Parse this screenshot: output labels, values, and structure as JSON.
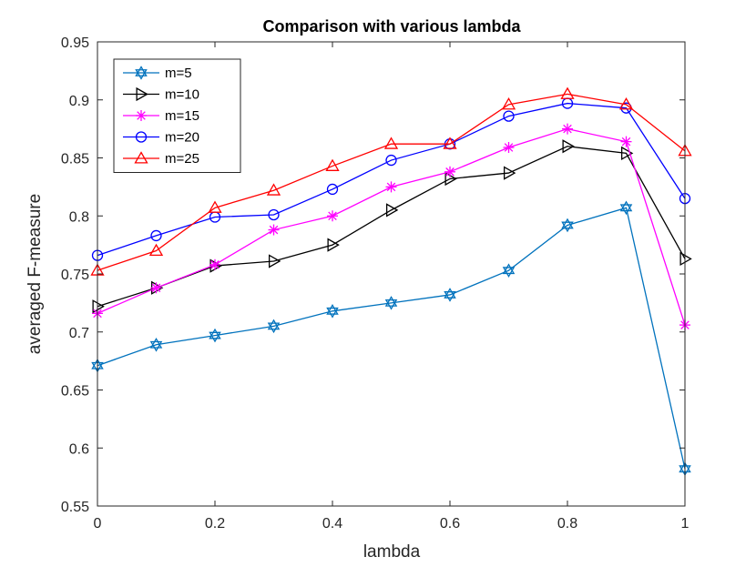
{
  "chart_data": {
    "type": "line",
    "title": "Comparison with various lambda",
    "xlabel": "lambda",
    "ylabel": "averaged F-measure",
    "xlim": [
      0,
      1
    ],
    "ylim": [
      0.55,
      0.95
    ],
    "x": [
      0,
      0.1,
      0.2,
      0.3,
      0.4,
      0.5,
      0.6,
      0.7,
      0.8,
      0.9,
      1.0
    ],
    "x_ticks": [
      "0",
      "0.2",
      "0.4",
      "0.6",
      "0.8",
      "1"
    ],
    "y_ticks": [
      "0.55",
      "0.6",
      "0.65",
      "0.7",
      "0.75",
      "0.8",
      "0.85",
      "0.9",
      "0.95"
    ],
    "grid": false,
    "legend_position": "top-left",
    "series": [
      {
        "name": "m=5",
        "color": "#0072bd",
        "marker": "hexagram",
        "values": [
          0.671,
          0.689,
          0.697,
          0.705,
          0.718,
          0.725,
          0.732,
          0.753,
          0.792,
          0.807,
          0.582
        ]
      },
      {
        "name": "m=10",
        "color": "#000000",
        "marker": "triangle-right",
        "values": [
          0.722,
          0.738,
          0.757,
          0.761,
          0.775,
          0.805,
          0.832,
          0.837,
          0.86,
          0.854,
          0.763
        ]
      },
      {
        "name": "m=15",
        "color": "#ff00ff",
        "marker": "asterisk",
        "values": [
          0.716,
          0.738,
          0.758,
          0.788,
          0.8,
          0.825,
          0.838,
          0.859,
          0.875,
          0.864,
          0.706
        ]
      },
      {
        "name": "m=20",
        "color": "#0000ff",
        "marker": "circle",
        "values": [
          0.766,
          0.783,
          0.799,
          0.801,
          0.823,
          0.848,
          0.862,
          0.886,
          0.897,
          0.893,
          0.815
        ]
      },
      {
        "name": "m=25",
        "color": "#ff0000",
        "marker": "triangle-up",
        "values": [
          0.753,
          0.77,
          0.807,
          0.822,
          0.843,
          0.862,
          0.862,
          0.896,
          0.905,
          0.896,
          0.856
        ]
      }
    ]
  }
}
